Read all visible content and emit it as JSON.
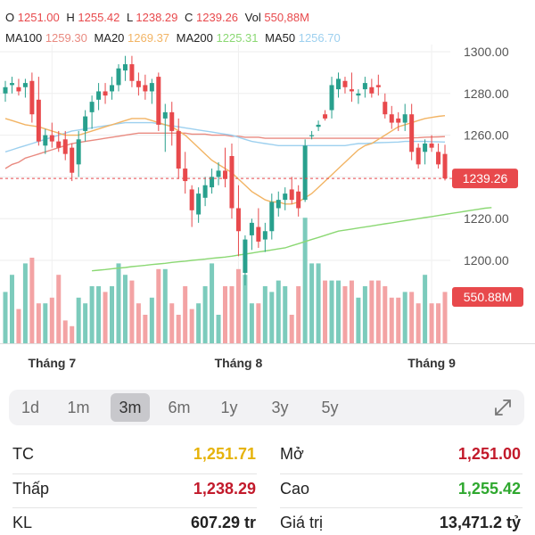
{
  "ohlc": {
    "o_label": "O",
    "o": "1251.00",
    "h_label": "H",
    "h": "1255.42",
    "l_label": "L",
    "l": "1238.29",
    "c_label": "C",
    "c": "1239.26",
    "vol_label": "Vol",
    "vol": "550,88M"
  },
  "ma": [
    {
      "label": "MA100",
      "value": "1259.30",
      "color": "#e98a80"
    },
    {
      "label": "MA20",
      "value": "1269.37",
      "color": "#f2b464"
    },
    {
      "label": "MA200",
      "value": "1225.31",
      "color": "#8bd873"
    },
    {
      "label": "MA50",
      "value": "1256.70",
      "color": "#9dd0ef"
    }
  ],
  "colors": {
    "up": "#28a08d",
    "down": "#e8494c",
    "up_vol": "#7ccbbc",
    "down_vol": "#f3a3a4"
  },
  "chart_data": {
    "type": "candlestick",
    "price_ticks": [
      "1300.00",
      "1280.00",
      "1260.00",
      "1240.00",
      "1220.00",
      "1200.00"
    ],
    "price_tick_values": [
      1300,
      1280,
      1260,
      1240,
      1220,
      1200
    ],
    "last_price_label": "1239.26",
    "last_price": 1239.26,
    "last_volume_label": "550.88M",
    "x_labels": [
      "Tháng 7",
      "Tháng 8",
      "Tháng 9"
    ],
    "x_label_index": [
      7,
      35,
      64
    ],
    "candles": [
      [
        1280,
        1286,
        1276,
        1283
      ],
      [
        1284,
        1288,
        1280,
        1285
      ],
      [
        1283,
        1287,
        1279,
        1281
      ],
      [
        1283,
        1287,
        1278,
        1285
      ],
      [
        1286,
        1290,
        1266,
        1270
      ],
      [
        1277,
        1288,
        1255,
        1257
      ],
      [
        1255,
        1263,
        1251,
        1260
      ],
      [
        1260,
        1266,
        1254,
        1257
      ],
      [
        1257,
        1262,
        1252,
        1254
      ],
      [
        1258,
        1262,
        1248,
        1251
      ],
      [
        1254,
        1256,
        1238,
        1242
      ],
      [
        1246,
        1262,
        1240,
        1258
      ],
      [
        1262,
        1272,
        1257,
        1269
      ],
      [
        1271,
        1279,
        1263,
        1276
      ],
      [
        1277,
        1285,
        1272,
        1281
      ],
      [
        1281,
        1285,
        1275,
        1279
      ],
      [
        1281,
        1288,
        1277,
        1284
      ],
      [
        1284,
        1294,
        1281,
        1292
      ],
      [
        1291,
        1298,
        1286,
        1294
      ],
      [
        1294,
        1298,
        1283,
        1286
      ],
      [
        1286,
        1290,
        1279,
        1283
      ],
      [
        1284,
        1289,
        1277,
        1281
      ],
      [
        1281,
        1287,
        1275,
        1285
      ],
      [
        1288,
        1290,
        1262,
        1265
      ],
      [
        1268,
        1275,
        1252,
        1271
      ],
      [
        1271,
        1276,
        1255,
        1262
      ],
      [
        1262,
        1268,
        1239,
        1244
      ],
      [
        1244,
        1252,
        1232,
        1238
      ],
      [
        1234,
        1236,
        1216,
        1224
      ],
      [
        1222,
        1235,
        1218,
        1232
      ],
      [
        1230,
        1240,
        1226,
        1236
      ],
      [
        1235,
        1244,
        1232,
        1240
      ],
      [
        1240,
        1247,
        1236,
        1243
      ],
      [
        1243,
        1254,
        1235,
        1239
      ],
      [
        1250,
        1256,
        1220,
        1225
      ],
      [
        1225,
        1236,
        1202,
        1214
      ],
      [
        1194,
        1212,
        1188,
        1210
      ],
      [
        1212,
        1220,
        1205,
        1218
      ],
      [
        1216,
        1225,
        1206,
        1209
      ],
      [
        1210,
        1218,
        1204,
        1214
      ],
      [
        1214,
        1232,
        1210,
        1228
      ],
      [
        1225,
        1233,
        1221,
        1229
      ],
      [
        1229,
        1235,
        1224,
        1232
      ],
      [
        1234,
        1240,
        1227,
        1229
      ],
      [
        1233,
        1236,
        1221,
        1225
      ],
      [
        1229,
        1258,
        1228,
        1255
      ],
      [
        1260,
        1262,
        1258,
        1260
      ],
      [
        1264,
        1267,
        1262,
        1265
      ],
      [
        1270,
        1272,
        1267,
        1268
      ],
      [
        1272,
        1288,
        1268,
        1284
      ],
      [
        1282,
        1290,
        1278,
        1287
      ],
      [
        1286,
        1288,
        1280,
        1283
      ],
      [
        1282,
        1290,
        1276,
        1281
      ],
      [
        1279,
        1282,
        1275,
        1280
      ],
      [
        1282,
        1288,
        1278,
        1285
      ],
      [
        1283,
        1287,
        1278,
        1280
      ],
      [
        1284,
        1289,
        1279,
        1283
      ],
      [
        1276,
        1280,
        1268,
        1270
      ],
      [
        1270,
        1274,
        1263,
        1266
      ],
      [
        1268,
        1271,
        1262,
        1266
      ],
      [
        1266,
        1275,
        1262,
        1270
      ],
      [
        1270,
        1275,
        1248,
        1252
      ],
      [
        1254,
        1256,
        1244,
        1246
      ],
      [
        1252,
        1258,
        1246,
        1256
      ],
      [
        1256,
        1260,
        1252,
        1254
      ],
      [
        1252,
        1256,
        1244,
        1246
      ],
      [
        1251,
        1255.42,
        1238.29,
        1239.26
      ]
    ],
    "volumes": [
      18,
      24,
      12,
      28,
      30,
      14,
      14,
      16,
      24,
      8,
      6,
      16,
      14,
      20,
      20,
      18,
      20,
      28,
      24,
      22,
      14,
      10,
      16,
      26,
      26,
      14,
      10,
      20,
      12,
      14,
      20,
      28,
      10,
      20,
      20,
      26,
      24,
      14,
      14,
      20,
      18,
      22,
      20,
      10,
      20,
      44,
      28,
      28,
      22,
      22,
      22,
      20,
      22,
      16,
      20,
      22,
      22,
      20,
      16,
      16,
      18,
      18,
      14,
      24,
      14,
      14,
      18
    ],
    "ma20": [
      1268,
      1267,
      1266,
      1265,
      1264.5,
      1264,
      1263,
      1262,
      1261,
      1260,
      1260,
      1260,
      1261,
      1262,
      1263,
      1264,
      1265,
      1266,
      1267,
      1268,
      1268,
      1268,
      1267,
      1266,
      1265,
      1264,
      1262,
      1260,
      1257,
      1254,
      1251,
      1248,
      1246,
      1244,
      1242,
      1239,
      1236,
      1233,
      1231,
      1229,
      1228,
      1228,
      1227,
      1227,
      1228,
      1230,
      1232,
      1235,
      1238,
      1241,
      1244,
      1247,
      1250,
      1253,
      1255,
      1256,
      1258,
      1260,
      1262,
      1264,
      1265,
      1266,
      1267,
      1268,
      1268.5,
      1269,
      1269.37
    ],
    "ma50": [
      1252,
      1253,
      1254,
      1255,
      1256,
      1257,
      1258,
      1259,
      1260,
      1261,
      1262,
      1262.5,
      1263,
      1263.5,
      1264,
      1264.5,
      1265,
      1265.5,
      1266,
      1266,
      1266,
      1266,
      1266,
      1265.5,
      1265,
      1264.5,
      1264,
      1263.5,
      1263,
      1262.5,
      1262,
      1261.5,
      1261,
      1260.5,
      1260,
      1259,
      1258,
      1257,
      1256.5,
      1256,
      1255.5,
      1255,
      1255,
      1255,
      1255,
      1255,
      1255,
      1255,
      1255,
      1255,
      1255,
      1255,
      1255.5,
      1256,
      1256,
      1256.2,
      1256.4,
      1256.5,
      1256.6,
      1256.7,
      1257,
      1257,
      1257,
      1257,
      1256.9,
      1256.8,
      1256.7
    ],
    "ma100": [
      1244,
      1246,
      1247,
      1249,
      1250,
      1251,
      1252,
      1253,
      1254,
      1255,
      1256,
      1256.5,
      1257,
      1257.5,
      1258,
      1258.5,
      1259,
      1259.5,
      1260,
      1260.5,
      1261,
      1261,
      1261,
      1261,
      1261,
      1261,
      1261,
      1261,
      1260.5,
      1260.5,
      1260.5,
      1260,
      1260,
      1260,
      1259.5,
      1259.5,
      1259,
      1259,
      1259,
      1258.5,
      1258.5,
      1258.5,
      1258.5,
      1258.5,
      1258.5,
      1258.5,
      1258.5,
      1258.5,
      1258.5,
      1258.5,
      1258.5,
      1258.5,
      1258.5,
      1258.5,
      1258.5,
      1258.5,
      1258.5,
      1258.5,
      1258.5,
      1258.5,
      1258.6,
      1258.7,
      1258.8,
      1259,
      1259.1,
      1259.2,
      1259.3
    ],
    "ma200_start_index": 13,
    "ma200": [
      1195,
      1195.3,
      1195.6,
      1196,
      1196.3,
      1196.6,
      1197,
      1197.3,
      1197.6,
      1198,
      1198.3,
      1198.6,
      1199,
      1199.3,
      1199.6,
      1200,
      1200.3,
      1200.6,
      1201,
      1201.3,
      1201.6,
      1202,
      1202.5,
      1203,
      1203.5,
      1204,
      1204.5,
      1205,
      1205.5,
      1206,
      1207,
      1208,
      1209,
      1210,
      1211,
      1212,
      1213,
      1214,
      1214.5,
      1215,
      1215.5,
      1216,
      1216.5,
      1217,
      1217.5,
      1218,
      1218.5,
      1219,
      1219.5,
      1220,
      1220.5,
      1221,
      1221.5,
      1222,
      1222.5,
      1223,
      1223.5,
      1224,
      1224.5,
      1225,
      1225.31
    ]
  },
  "periods": {
    "items": [
      "1d",
      "1m",
      "3m",
      "6m",
      "1y",
      "3y",
      "5y"
    ],
    "active": "3m"
  },
  "stats": {
    "tc_label": "TC",
    "tc": "1,251.71",
    "tc_color": "#e6b30b",
    "mo_label": "Mở",
    "mo": "1,251.00",
    "mo_color": "#c21a2b",
    "thap_label": "Thấp",
    "thap": "1,238.29",
    "thap_color": "#c21a2b",
    "cao_label": "Cao",
    "cao": "1,255.42",
    "cao_color": "#2fa82f",
    "kl_label": "KL",
    "kl": "607.29 tr",
    "gt_label": "Giá trị",
    "gt": "13,471.2 tỷ"
  }
}
